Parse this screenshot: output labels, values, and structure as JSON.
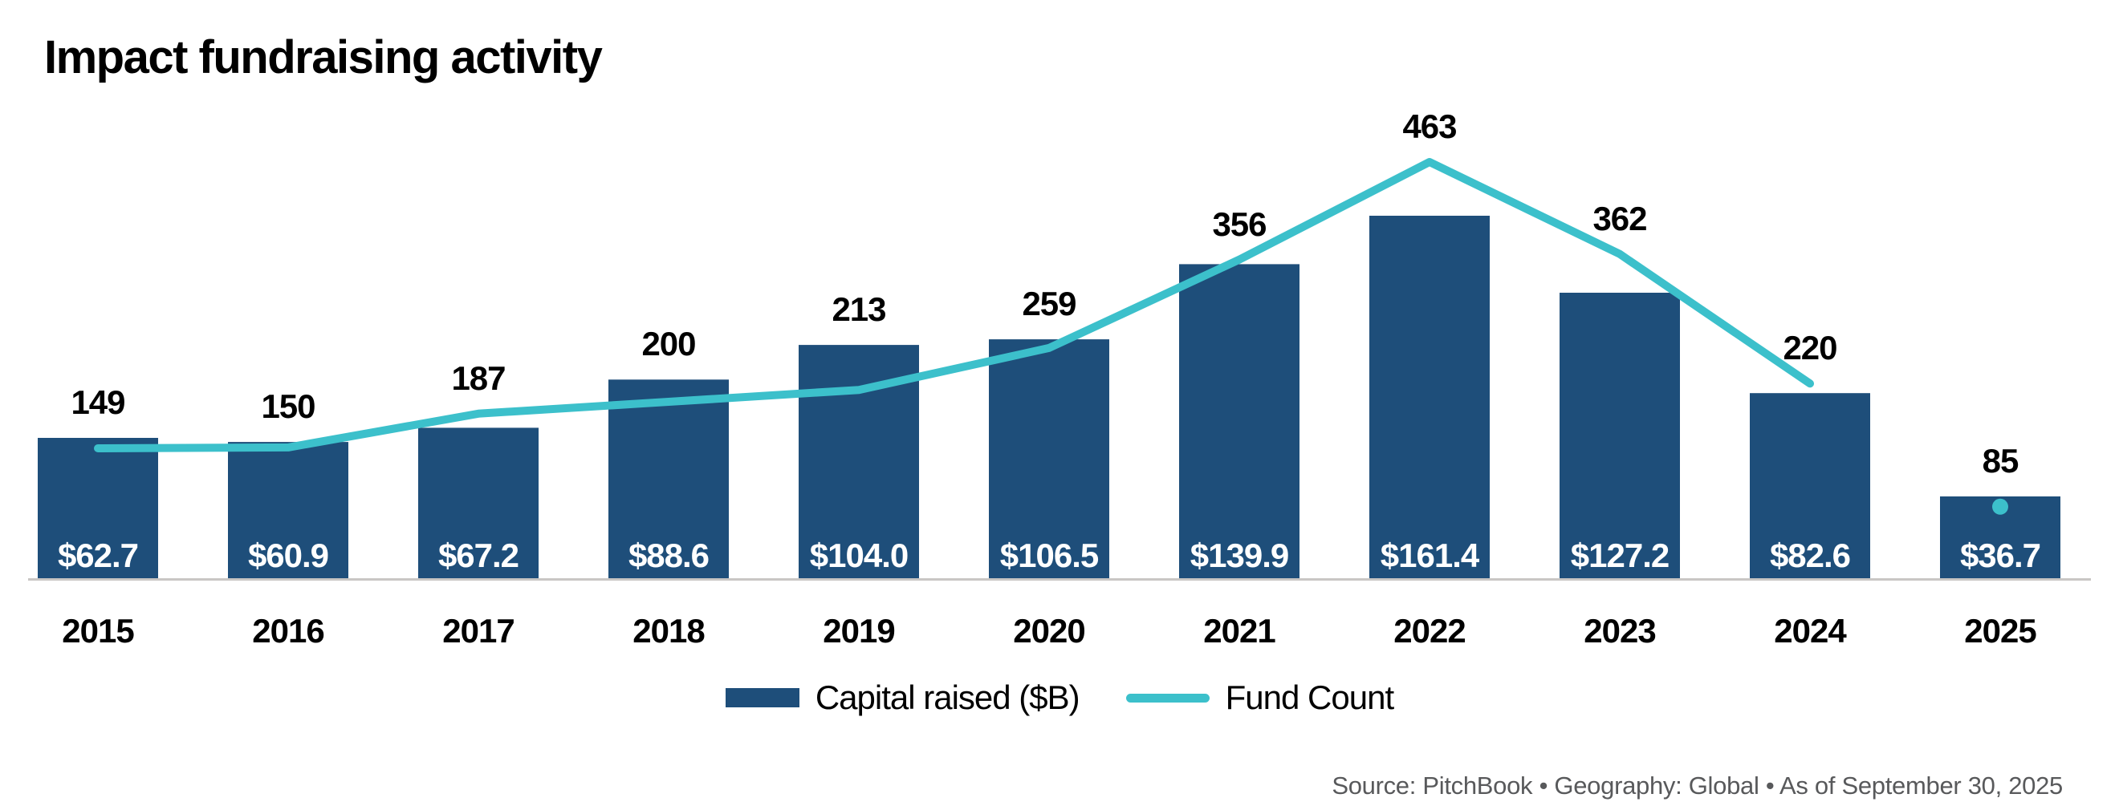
{
  "header": {
    "title": "Impact fundraising activity"
  },
  "chart_data": {
    "type": "combo",
    "title": "Impact fundraising activity",
    "categories": [
      "2015",
      "2016",
      "2017",
      "2018",
      "2019",
      "2020",
      "2021",
      "2022",
      "2023",
      "2024",
      "2025"
    ],
    "series": [
      {
        "name": "Capital raised ($B)",
        "type": "bar",
        "color": "#1E4E7A",
        "values": [
          62.7,
          60.9,
          67.2,
          88.6,
          104.0,
          106.5,
          139.9,
          161.4,
          127.2,
          82.6,
          36.7
        ],
        "value_labels": [
          "$62.7",
          "$60.9",
          "$67.2",
          "$88.6",
          "$104.0",
          "$106.5",
          "$139.9",
          "$161.4",
          "$127.2",
          "$82.6",
          "$36.7"
        ]
      },
      {
        "name": "Fund Count",
        "type": "line",
        "color": "#3CC0CB",
        "values": [
          149,
          150,
          187,
          200,
          213,
          259,
          356,
          463,
          362,
          220,
          85
        ],
        "line_ends_at": "2024",
        "detached_dot_at": "2025"
      }
    ],
    "legend_position": "bottom",
    "grid": false,
    "value_axis_hidden": true,
    "baseline_color": "#C9C6C4"
  },
  "footer": {
    "source_line": "Source: PitchBook  •  Geography: Global  •  As of September 30, 2025"
  },
  "colors": {
    "bar": "#1E4E7A",
    "line": "#3CC0CB",
    "axis": "#C9C6C4",
    "data_label": "#000000",
    "bar_value_label": "#FFFFFF",
    "source_text": "#58595B",
    "background": "#FFFFFF"
  }
}
